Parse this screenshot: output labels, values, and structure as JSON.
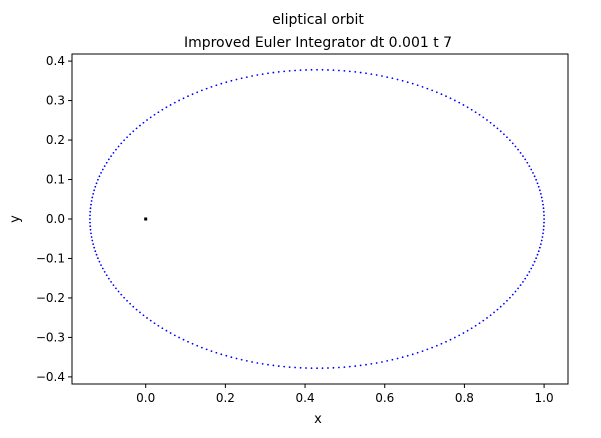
{
  "chart_data": {
    "type": "scatter",
    "title": "eliptical orbit",
    "subtitle": "Improved Euler Integrator dt 0.001 t 7",
    "xlabel": "x",
    "ylabel": "y",
    "xlim": [
      -0.185,
      1.06
    ],
    "ylim": [
      -0.418,
      0.418
    ],
    "xticks": [
      0.0,
      0.2,
      0.4,
      0.6,
      0.8,
      1.0
    ],
    "xtick_labels": [
      "0.0",
      "0.2",
      "0.4",
      "0.6",
      "0.8",
      "1.0"
    ],
    "yticks": [
      -0.4,
      -0.3,
      -0.2,
      -0.1,
      0.0,
      0.1,
      0.2,
      0.3,
      0.4
    ],
    "ytick_labels": [
      "−0.4",
      "−0.3",
      "−0.2",
      "−0.1",
      "0.0",
      "0.1",
      "0.2",
      "0.3",
      "0.4"
    ],
    "grid": false,
    "orbit": {
      "color": "#0000ff",
      "center_x": 0.43,
      "semi_major": 0.57,
      "semi_minor": 0.378,
      "point_count": 260
    },
    "central_body": {
      "x": 0.0,
      "y": 0.0,
      "color": "#000000"
    }
  }
}
